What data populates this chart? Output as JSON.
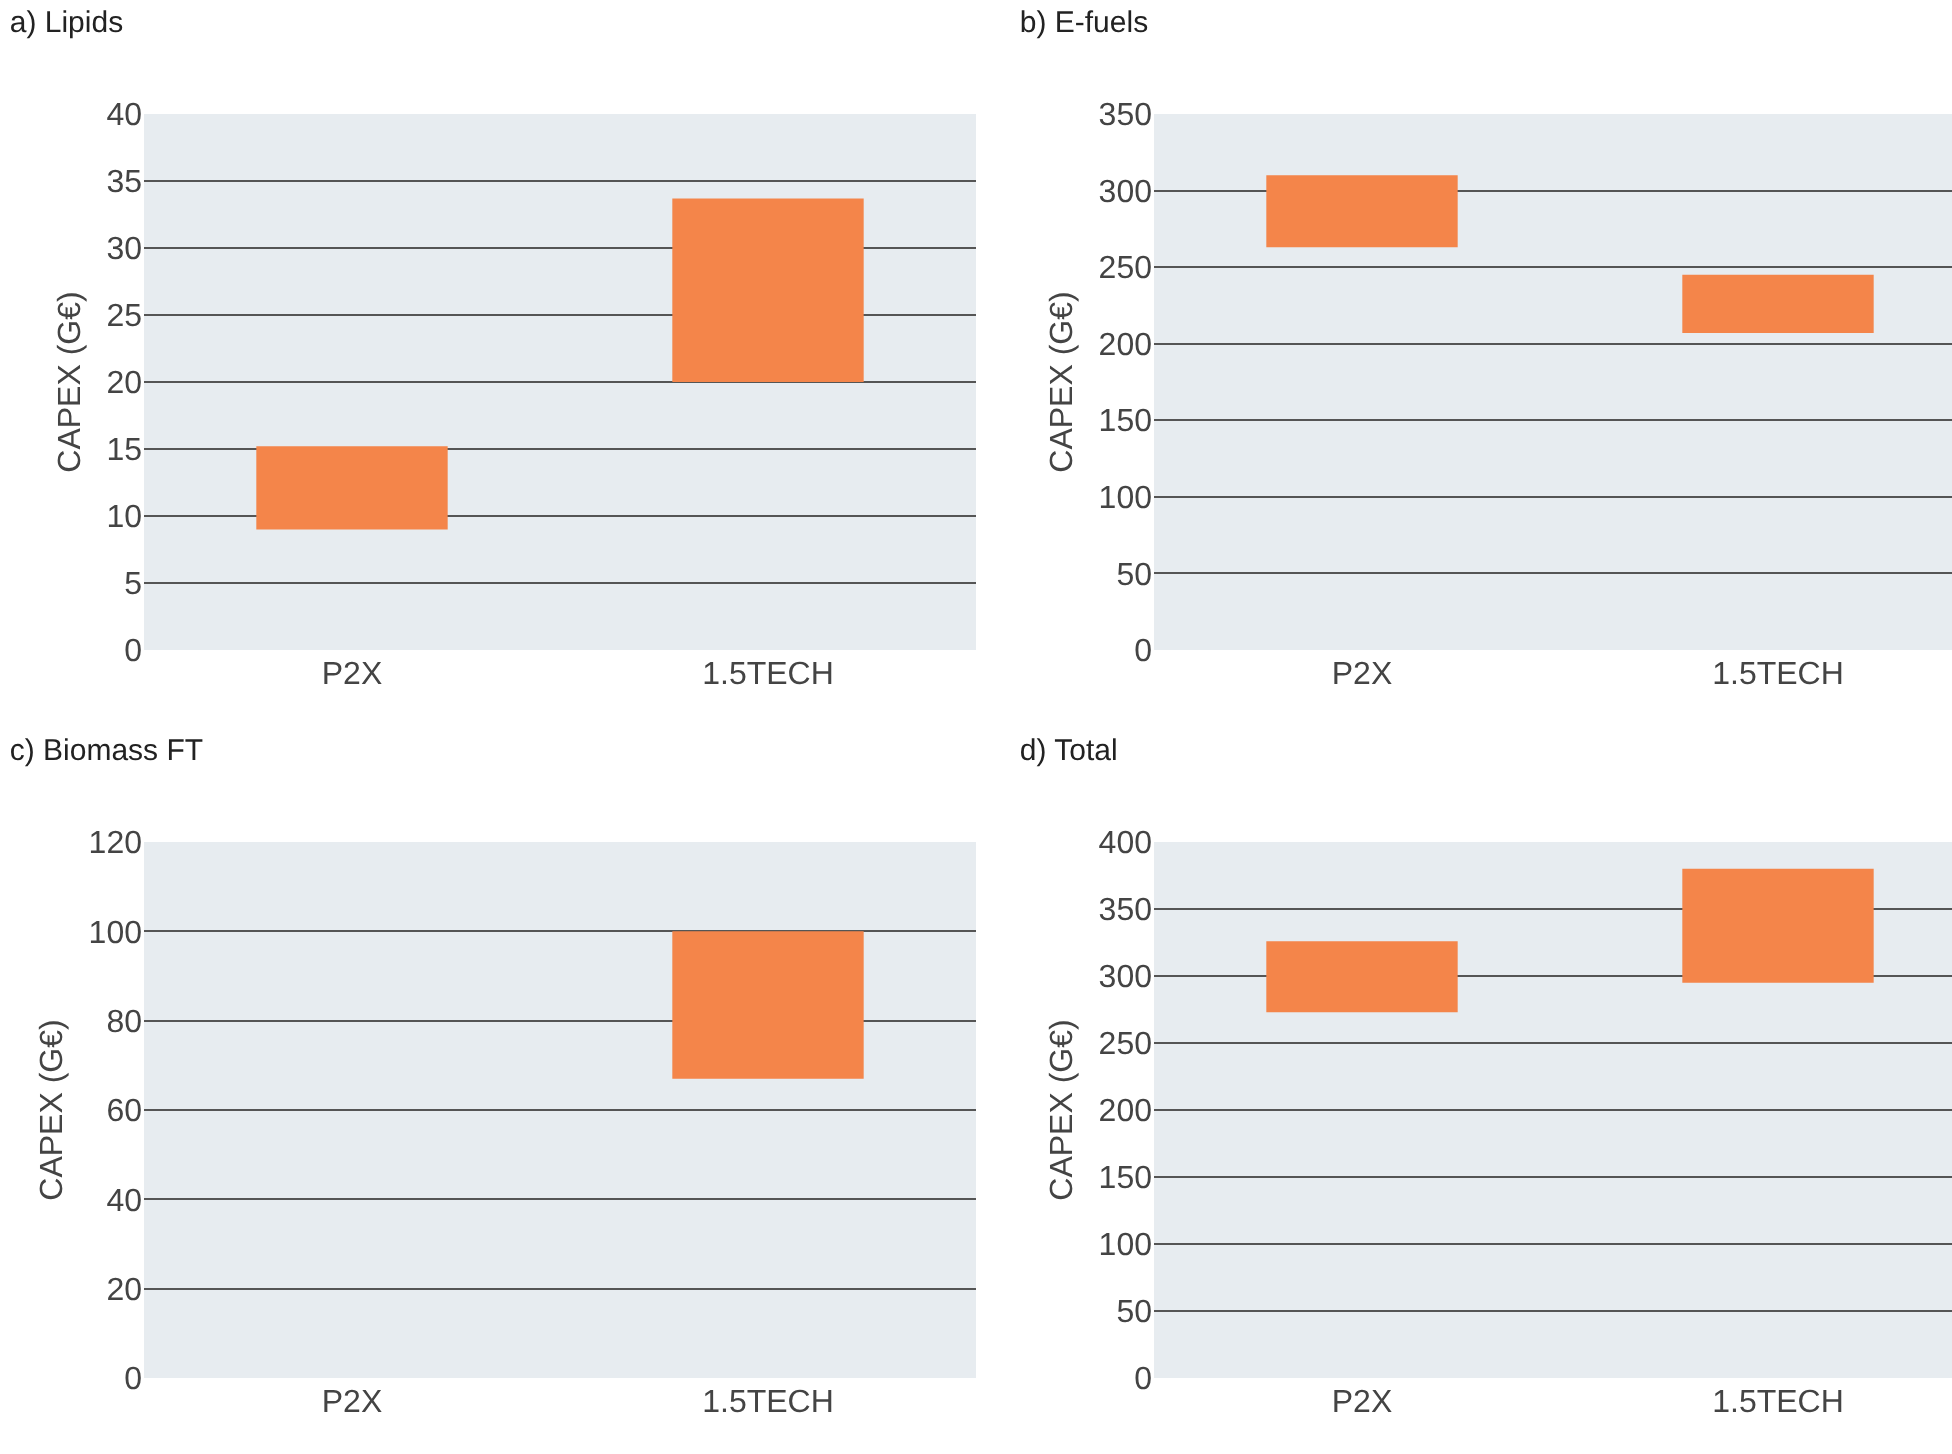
{
  "chart_data": [
    {
      "type": "bar",
      "title": "a) Lipids",
      "ylabel": "CAPEX (G€)",
      "categories": [
        "P2X",
        "1.5TECH"
      ],
      "base": [
        9,
        20
      ],
      "values": [
        6.2,
        13.7
      ],
      "color": "#f4854a",
      "ylim": [
        0,
        40
      ],
      "yticks": [
        0,
        5,
        10,
        15,
        20,
        25,
        30,
        35,
        40
      ],
      "grid": "y"
    },
    {
      "type": "bar",
      "title": "b) E-fuels",
      "ylabel": "CAPEX (G€)",
      "categories": [
        "P2X",
        "1.5TECH"
      ],
      "base": [
        263,
        207
      ],
      "values": [
        47,
        38
      ],
      "color": "#f4854a",
      "ylim": [
        0,
        350
      ],
      "yticks": [
        0,
        50,
        100,
        150,
        200,
        250,
        300,
        350
      ],
      "grid": "y"
    },
    {
      "type": "bar",
      "title": "c) Biomass FT",
      "ylabel": "CAPEX (G€)",
      "categories": [
        "P2X",
        "1.5TECH"
      ],
      "base": [
        null,
        67
      ],
      "values": [
        null,
        33
      ],
      "color": "#f4854a",
      "ylim": [
        0,
        120
      ],
      "yticks": [
        0,
        20,
        40,
        60,
        80,
        100,
        120
      ],
      "grid": "y"
    },
    {
      "type": "bar",
      "title": "d) Total",
      "ylabel": "CAPEX (G€)",
      "categories": [
        "P2X",
        "1.5TECH"
      ],
      "base": [
        273,
        295
      ],
      "values": [
        53,
        85
      ],
      "color": "#f4854a",
      "ylim": [
        0,
        400
      ],
      "yticks": [
        0,
        50,
        100,
        150,
        200,
        250,
        300,
        350,
        400
      ],
      "grid": "y"
    }
  ]
}
